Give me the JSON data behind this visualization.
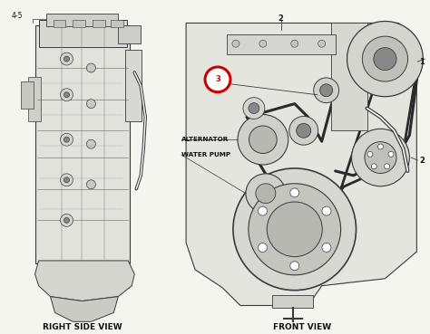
{
  "background_color": "#f5f5f0",
  "figure_width": 4.74,
  "figure_height": 3.69,
  "dpi": 100,
  "left_label": "RIGHT SIDE VIEW",
  "right_label": "FRONT VIEW",
  "label_4_5": "4-5",
  "label_1": "1",
  "label_2_top": "2",
  "label_2_right": "2",
  "label_3": "3",
  "alternator_label": "ALTERNATOR",
  "water_pump_label": "WATER PUMP",
  "circle_marker_color": "#cc0000",
  "line_color": "#3a3a3a",
  "dark_gray": "#555555",
  "mid_gray": "#888888",
  "light_gray": "#cccccc",
  "bg_gray": "#e8e8e3",
  "text_color": "#111111",
  "label_fontsize": 6.5,
  "small_fontsize": 5.5
}
